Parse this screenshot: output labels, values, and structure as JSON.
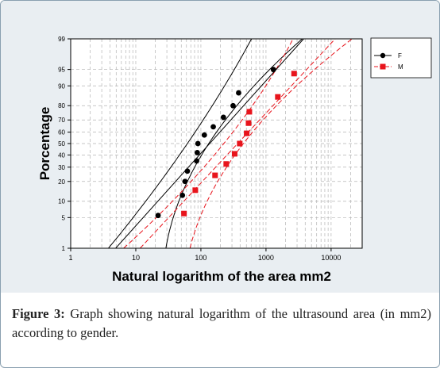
{
  "chart_data": {
    "type": "scatter",
    "subtype": "probability plot with fitted lines and confidence bands",
    "xscale": "log",
    "yscale": "normal-probability",
    "xlim": [
      1,
      30000
    ],
    "ylim": [
      1,
      99
    ],
    "xlabel": "Natural logarithm of the area mm2",
    "ylabel": "Porcentage",
    "xticks": [
      1,
      10,
      100,
      1000,
      10000
    ],
    "xtick_labels": [
      "1",
      "10",
      "100",
      "1000",
      "10000"
    ],
    "yticks": [
      1,
      5,
      10,
      20,
      30,
      40,
      50,
      60,
      70,
      80,
      90,
      95,
      99
    ],
    "ytick_labels": [
      "1",
      "5",
      "10",
      "20",
      "30",
      "40",
      "50",
      "60",
      "70",
      "80",
      "90",
      "95",
      "99"
    ],
    "grid": true,
    "legend_position": "top-right",
    "series": [
      {
        "name": "F",
        "color": "#000000",
        "marker": "circle",
        "x": [
          22,
          52,
          57,
          62,
          86,
          88,
          90,
          113,
          155,
          222,
          312,
          380,
          1300
        ],
        "y": [
          5.5,
          12.5,
          20,
          27,
          35,
          42,
          50,
          57.5,
          64.5,
          72,
          80,
          87,
          95
        ],
        "fit": {
          "p5": 13,
          "p95": 1430
        },
        "band_lower": {
          "p1": 3.8,
          "p50": 62,
          "p99": 600
        },
        "band_upper": {
          "p1": 29,
          "p50": 132,
          "p99": 3600
        }
      },
      {
        "name": "M",
        "color": "#e8141c",
        "marker": "square",
        "x": [
          55,
          82,
          165,
          245,
          330,
          395,
          505,
          540,
          555,
          1520,
          2700
        ],
        "y": [
          6,
          15,
          24,
          32.5,
          41,
          50,
          59,
          67.5,
          76,
          85,
          94
        ],
        "fit": {
          "p5": 32,
          "p95": 4200
        },
        "band_lower": {
          "p1": 6.5,
          "p50": 225,
          "p99": 2600
        },
        "band_upper": {
          "p1": 68,
          "p50": 450,
          "p99": 21000
        }
      }
    ]
  },
  "caption": {
    "label": "Figure 3:",
    "text": " Graph showing natural logarithm of the ultrasound area (in mm2) according to gender."
  }
}
